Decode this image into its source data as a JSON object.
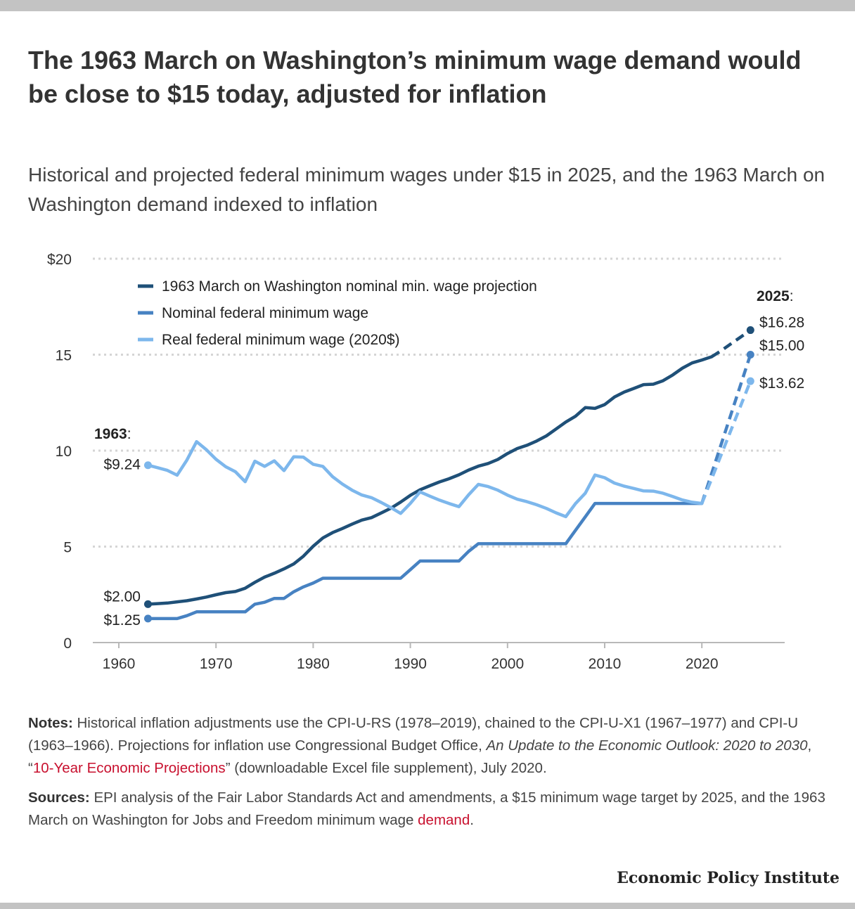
{
  "title": "The 1963 March on Washington’s minimum wage demand would be close to $15 today, adjusted for inflation",
  "subtitle": "Historical and projected federal minimum wages under $15 in 2025, and the 1963 March on Washington demand indexed to inflation",
  "notes": {
    "label": "Notes:",
    "text_1": "Historical inflation adjustments use the CPI-U-RS (1978–2019), chained to the CPI-U-X1 (1967–1977) and CPI-U (1963–1966). Projections for inflation use Congressional Budget Office,",
    "italic": "An Update to the Economic Outlook: 2020 to 2030",
    "text_2": ", “",
    "link": "10-Year Economic Projections",
    "text_3": "” (downloadable Excel file supplement), July 2020."
  },
  "sources": {
    "label": "Sources:",
    "text": "EPI analysis of the Fair Labor Standards Act and amendments, a $15 minimum wage target by 2025, and the 1963 March on Washington for Jobs and Freedom minimum wage",
    "link": "demand",
    "end": "."
  },
  "brand": "Economic Policy Institute",
  "colors": {
    "dark": "#1f5078",
    "mid": "#4782c2",
    "light": "#7db7ec",
    "grid": "#d5d5d5",
    "link": "#c8102e"
  },
  "chart_data": {
    "type": "line",
    "xlim": [
      1958,
      2028
    ],
    "ylim": [
      0,
      20
    ],
    "x_ticks": [
      1960,
      1970,
      1980,
      1990,
      2000,
      2010,
      2020
    ],
    "x_tick_labels": [
      "1960",
      "1970",
      "1980",
      "1990",
      "2000",
      "2010",
      "2020"
    ],
    "y_ticks": [
      0,
      5,
      10,
      15,
      20
    ],
    "y_tick_labels": [
      "0",
      "5",
      "10",
      "15",
      "$20"
    ],
    "grid": "horizontal dotted",
    "legend_position": "top-left",
    "series": [
      {
        "name": "1963 March on Washington nominal min. wage projection",
        "color_key": "dark",
        "x": [
          1963,
          1964,
          1965,
          1966,
          1967,
          1968,
          1969,
          1970,
          1971,
          1972,
          1973,
          1974,
          1975,
          1976,
          1977,
          1978,
          1979,
          1980,
          1981,
          1982,
          1983,
          1984,
          1985,
          1986,
          1987,
          1988,
          1989,
          1990,
          1991,
          1992,
          1993,
          1994,
          1995,
          1996,
          1997,
          1998,
          1999,
          2000,
          2001,
          2002,
          2003,
          2004,
          2005,
          2006,
          2007,
          2008,
          2009,
          2010,
          2011,
          2012,
          2013,
          2014,
          2015,
          2016,
          2017,
          2018,
          2019,
          2020,
          2021,
          2022,
          2023,
          2024,
          2025
        ],
        "y": [
          2.0,
          2.03,
          2.06,
          2.12,
          2.18,
          2.27,
          2.37,
          2.49,
          2.6,
          2.66,
          2.83,
          3.14,
          3.41,
          3.61,
          3.84,
          4.1,
          4.5,
          5.02,
          5.45,
          5.73,
          5.94,
          6.17,
          6.38,
          6.51,
          6.75,
          7.0,
          7.32,
          7.67,
          7.96,
          8.17,
          8.37,
          8.54,
          8.74,
          8.99,
          9.19,
          9.33,
          9.54,
          9.85,
          10.11,
          10.28,
          10.5,
          10.77,
          11.13,
          11.49,
          11.79,
          12.24,
          12.2,
          12.4,
          12.79,
          13.05,
          13.24,
          13.44,
          13.46,
          13.64,
          13.94,
          14.3,
          14.57,
          14.72,
          14.89,
          15.21,
          15.57,
          15.92,
          16.28
        ],
        "projection_from": 2021
      },
      {
        "name": "Nominal federal minimum wage",
        "color_key": "mid",
        "x": [
          1963,
          1964,
          1965,
          1966,
          1967,
          1968,
          1969,
          1970,
          1971,
          1972,
          1973,
          1974,
          1975,
          1976,
          1977,
          1978,
          1979,
          1980,
          1981,
          1982,
          1983,
          1984,
          1985,
          1986,
          1987,
          1988,
          1989,
          1990,
          1991,
          1992,
          1993,
          1994,
          1995,
          1996,
          1997,
          1998,
          1999,
          2000,
          2001,
          2002,
          2003,
          2004,
          2005,
          2006,
          2007,
          2008,
          2009,
          2010,
          2011,
          2012,
          2013,
          2014,
          2015,
          2016,
          2017,
          2018,
          2019,
          2020,
          2025
        ],
        "y": [
          1.25,
          1.25,
          1.25,
          1.25,
          1.4,
          1.6,
          1.6,
          1.6,
          1.6,
          1.6,
          1.6,
          2.0,
          2.1,
          2.3,
          2.3,
          2.65,
          2.9,
          3.1,
          3.35,
          3.35,
          3.35,
          3.35,
          3.35,
          3.35,
          3.35,
          3.35,
          3.35,
          3.8,
          4.25,
          4.25,
          4.25,
          4.25,
          4.25,
          4.75,
          5.15,
          5.15,
          5.15,
          5.15,
          5.15,
          5.15,
          5.15,
          5.15,
          5.15,
          5.15,
          5.85,
          6.55,
          7.25,
          7.25,
          7.25,
          7.25,
          7.25,
          7.25,
          7.25,
          7.25,
          7.25,
          7.25,
          7.25,
          7.25,
          15.0
        ],
        "projection_from": 2020
      },
      {
        "name": "Real federal minimum wage (2020$)",
        "color_key": "light",
        "x": [
          1963,
          1964,
          1965,
          1966,
          1967,
          1968,
          1969,
          1970,
          1971,
          1972,
          1973,
          1974,
          1975,
          1976,
          1977,
          1978,
          1979,
          1980,
          1981,
          1982,
          1983,
          1984,
          1985,
          1986,
          1987,
          1988,
          1989,
          1990,
          1991,
          1992,
          1993,
          1994,
          1995,
          1996,
          1997,
          1998,
          1999,
          2000,
          2001,
          2002,
          2003,
          2004,
          2005,
          2006,
          2007,
          2008,
          2009,
          2010,
          2011,
          2012,
          2013,
          2014,
          2015,
          2016,
          2017,
          2018,
          2019,
          2020,
          2025
        ],
        "y": [
          9.24,
          9.11,
          8.97,
          8.72,
          9.5,
          10.47,
          10.05,
          9.55,
          9.16,
          8.9,
          8.38,
          9.45,
          9.18,
          9.47,
          8.96,
          9.68,
          9.66,
          9.29,
          9.18,
          8.64,
          8.26,
          7.94,
          7.69,
          7.55,
          7.3,
          7.03,
          6.73,
          7.25,
          7.85,
          7.63,
          7.42,
          7.24,
          7.08,
          7.7,
          8.24,
          8.13,
          7.94,
          7.68,
          7.47,
          7.34,
          7.18,
          6.99,
          6.76,
          6.56,
          7.24,
          7.78,
          8.73,
          8.59,
          8.31,
          8.15,
          8.03,
          7.9,
          7.89,
          7.78,
          7.61,
          7.43,
          7.31,
          7.25,
          13.62
        ],
        "projection_from": 2020
      }
    ],
    "annotations": {
      "start_year_label": "1963",
      "end_year_label": "2025",
      "start_values": [
        "$9.24",
        "$2.00",
        "$1.25"
      ],
      "end_values": [
        "$16.28",
        "$15.00",
        "$13.62"
      ]
    }
  }
}
